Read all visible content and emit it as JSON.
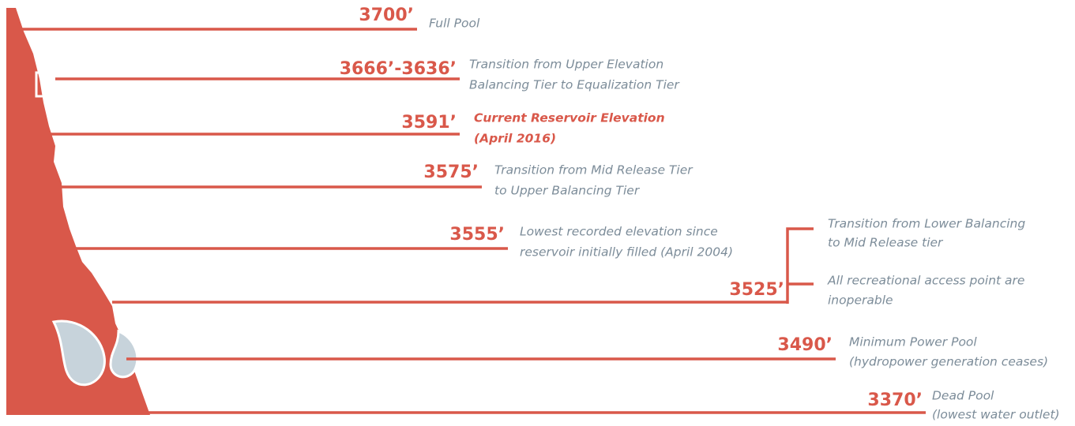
{
  "levels": [
    {
      "elevation": "3700’",
      "description": [
        "Full Pool"
      ]
    },
    {
      "elevation": "3666’-3636’",
      "description": [
        "Transition from Upper Elevation",
        "Balancing Tier to Equalization Tier"
      ]
    },
    {
      "elevation": "3591’",
      "description": [
        "Current Reservoir Elevation",
        "(April 2016)"
      ]
    },
    {
      "elevation": "3575’",
      "description": [
        "Transition from Mid Release Tier",
        "to Upper Balancing Tier"
      ]
    },
    {
      "elevation": "3555’",
      "description": [
        "Lowest recorded elevation since",
        "reservoir initially filled (April 2004)"
      ]
    },
    {
      "elevation": "3525’",
      "description": [
        "Transition from Lower Balancing",
        "to Mid Release tier",
        "All recreational access point are",
        "inoperable"
      ]
    },
    {
      "elevation": "3490’",
      "description": [
        "Minimum Power Pool",
        "(hydropower generation ceases)"
      ]
    },
    {
      "elevation": "3370’",
      "description": [
        "Dead Pool",
        "(lowest water outlet)"
      ]
    }
  ]
}
